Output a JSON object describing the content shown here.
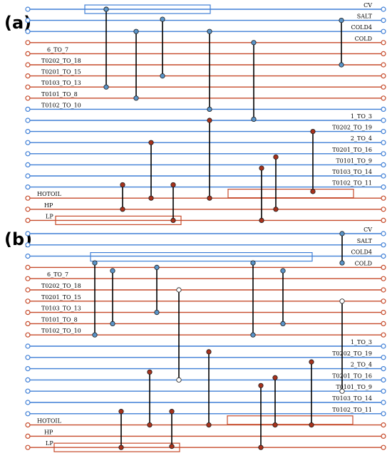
{
  "colors": {
    "hot": "#c64a2a",
    "cold": "#3f7fd6",
    "node_blue": "#5b95c9",
    "node_red": "#a8321c",
    "node_white": "#ffffff"
  },
  "panels": [
    {
      "label": "(a)",
      "streams": [
        {
          "label": "CV",
          "color": "blue",
          "side": "right"
        },
        {
          "label": "SALT",
          "color": "blue",
          "side": "right"
        },
        {
          "label": "COLD4",
          "color": "blue",
          "side": "right"
        },
        {
          "label": "COLD",
          "color": "red",
          "side": "right"
        },
        {
          "label": "6_TO_7",
          "color": "red",
          "side": "left"
        },
        {
          "label": "T0202_TO_18",
          "color": "red",
          "side": "left"
        },
        {
          "label": "T0201_TO_15",
          "color": "red",
          "side": "left"
        },
        {
          "label": "T0103_TO_13",
          "color": "red",
          "side": "left"
        },
        {
          "label": "T0101_TO_8",
          "color": "red",
          "side": "left"
        },
        {
          "label": "T0102_TO_10",
          "color": "blue",
          "side": "left"
        },
        {
          "label": "1_TO_3",
          "color": "blue",
          "side": "right"
        },
        {
          "label": "T0202_TO_19",
          "color": "blue",
          "side": "right"
        },
        {
          "label": "2_TO_4",
          "color": "blue",
          "side": "right"
        },
        {
          "label": "T0201_TO_16",
          "color": "blue",
          "side": "right"
        },
        {
          "label": "T0101_TO_9",
          "color": "blue",
          "side": "right"
        },
        {
          "label": "T0103_TO_14",
          "color": "blue",
          "side": "right"
        },
        {
          "label": "T0102_TO_11",
          "color": "blue",
          "side": "right"
        },
        {
          "label": "HOTOIL",
          "color": "red",
          "side": "left"
        },
        {
          "label": "HP",
          "color": "red",
          "side": "left"
        },
        {
          "label": "LP",
          "color": "red",
          "side": "left"
        }
      ],
      "matches": [
        {
          "from": 0,
          "to": 7,
          "top_node": "blue",
          "bottom_node": "blue"
        },
        {
          "from": 2,
          "to": 8,
          "top_node": "blue",
          "bottom_node": "blue"
        },
        {
          "from": 1,
          "to": 6,
          "top_node": "blue",
          "bottom_node": "blue"
        },
        {
          "from": 2,
          "to": 9,
          "top_node": "blue",
          "bottom_node": "blue"
        },
        {
          "from": 10,
          "to": 17,
          "top_node": "red",
          "bottom_node": "red"
        },
        {
          "from": 3,
          "to": 9,
          "top_node": "blue",
          "bottom_node": "blue"
        },
        {
          "from": 1,
          "to": 5,
          "top_node": "blue",
          "bottom_node": "blue"
        },
        {
          "from": 12,
          "to": 17,
          "top_node": "red",
          "bottom_node": "red"
        },
        {
          "from": 15,
          "to": 18,
          "top_node": "red",
          "bottom_node": "red"
        },
        {
          "from": 15,
          "to": 19,
          "top_node": "red",
          "bottom_node": "red"
        },
        {
          "from": 14,
          "to": 19,
          "top_node": "red",
          "bottom_node": "red"
        },
        {
          "from": 13,
          "to": 18,
          "top_node": "red",
          "bottom_node": "red"
        },
        {
          "from": 11,
          "to": 16,
          "top_node": "red",
          "bottom_node": "red"
        },
        {
          "from": 0,
          "to": 7,
          "top_node": "blue",
          "bottom_node": "blue"
        }
      ]
    },
    {
      "label": "(b)",
      "streams": [
        {
          "label": "CV",
          "color": "blue",
          "side": "right"
        },
        {
          "label": "SALT",
          "color": "blue",
          "side": "right"
        },
        {
          "label": "COLD4",
          "color": "blue",
          "side": "right"
        },
        {
          "label": "COLD",
          "color": "red",
          "side": "right"
        },
        {
          "label": "6_TO_7",
          "color": "red",
          "side": "left"
        },
        {
          "label": "T0202_TO_18",
          "color": "red",
          "side": "left"
        },
        {
          "label": "T0201_TO_15",
          "color": "red",
          "side": "left"
        },
        {
          "label": "T0103_TO_13",
          "color": "red",
          "side": "left"
        },
        {
          "label": "T0101_TO_8",
          "color": "red",
          "side": "left"
        },
        {
          "label": "T0102_TO_10",
          "color": "red",
          "side": "left"
        },
        {
          "label": "1_TO_3",
          "color": "blue",
          "side": "right"
        },
        {
          "label": "T0202_TO_19",
          "color": "blue",
          "side": "right"
        },
        {
          "label": "2_TO_4",
          "color": "blue",
          "side": "right"
        },
        {
          "label": "T0201_TO_16",
          "color": "blue",
          "side": "right"
        },
        {
          "label": "T0101_TO_9",
          "color": "blue",
          "side": "right"
        },
        {
          "label": "T0103_TO_14",
          "color": "blue",
          "side": "right"
        },
        {
          "label": "T0102_TO_11",
          "color": "blue",
          "side": "right"
        },
        {
          "label": "HOTOIL",
          "color": "red",
          "side": "left"
        },
        {
          "label": "HP",
          "color": "red",
          "side": "left"
        },
        {
          "label": "LP",
          "color": "red",
          "side": "left"
        }
      ]
    }
  ]
}
